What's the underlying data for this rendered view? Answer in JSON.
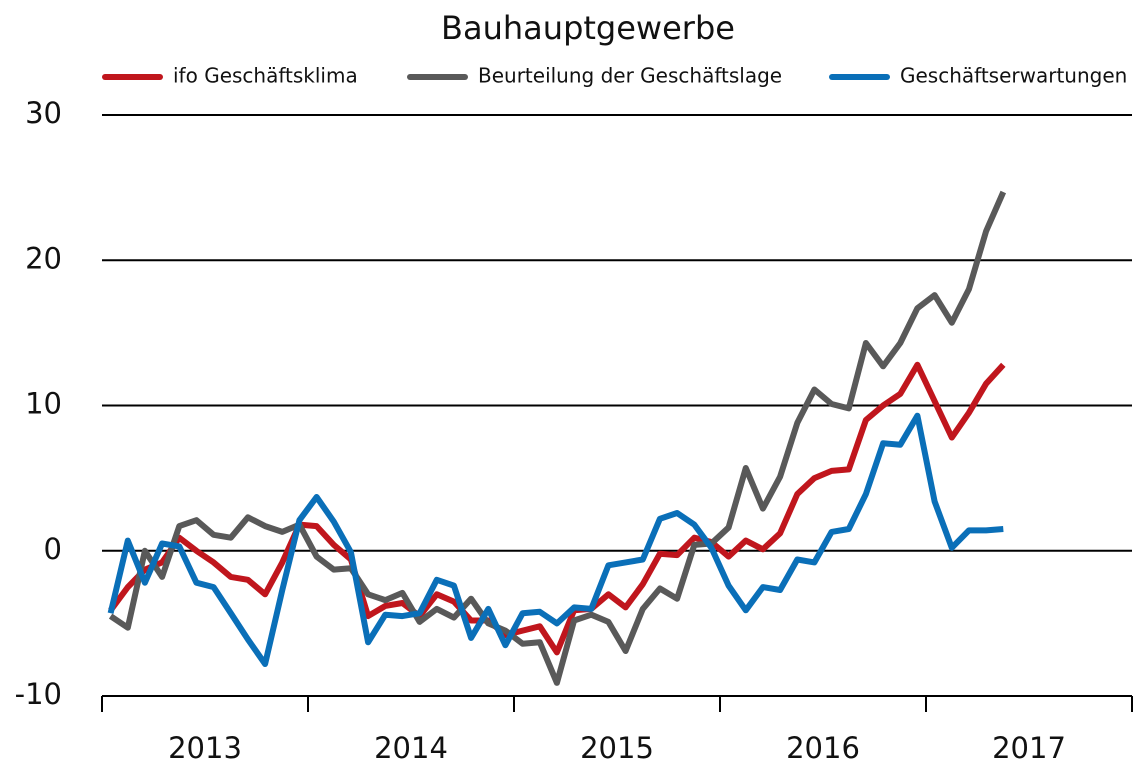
{
  "chart_data": {
    "type": "line",
    "title": "Bauhauptgewerbe",
    "categories": [
      null,
      null,
      null,
      null,
      null,
      null,
      null,
      null,
      null,
      null,
      null,
      null,
      null,
      null,
      null,
      null,
      null,
      null,
      null,
      null,
      null,
      null,
      null,
      null,
      null,
      null,
      null,
      null,
      null,
      null,
      null,
      null,
      null,
      null,
      null,
      null,
      null,
      null,
      null,
      null,
      null,
      null,
      null,
      null,
      null,
      null,
      null,
      null,
      null,
      null,
      null,
      null,
      null
    ],
    "years": [
      "2013",
      "2014",
      "2015",
      "2016",
      "2017"
    ],
    "ylim": [
      -10,
      30
    ],
    "yticks": [
      -10,
      0,
      10,
      20,
      30
    ],
    "grid": true,
    "series": [
      {
        "name": "ifo Geschäftsklima",
        "color": "#c0161d",
        "values": [
          -4.1,
          -2.5,
          -1.3,
          -0.8,
          0.9,
          0.0,
          -0.8,
          -1.8,
          -2.0,
          -3.0,
          -0.8,
          1.8,
          1.7,
          0.4,
          -0.6,
          -4.5,
          -3.8,
          -3.6,
          -4.5,
          -3.0,
          -3.5,
          -4.8,
          -4.8,
          -5.8,
          -5.5,
          -5.2,
          -7.0,
          -4.1,
          -4.0,
          -3.0,
          -3.9,
          -2.3,
          -0.2,
          -0.3,
          0.9,
          0.6,
          -0.4,
          0.7,
          0.1,
          1.2,
          3.9,
          5.0,
          5.5,
          5.6,
          9.0,
          10.0,
          10.8,
          12.8,
          10.3,
          7.8,
          9.5,
          11.5,
          12.8
        ]
      },
      {
        "name": "Beurteilung der Geschäftslage",
        "color": "#595959",
        "values": [
          -4.5,
          -5.3,
          0.0,
          -1.8,
          1.7,
          2.1,
          1.1,
          0.9,
          2.3,
          1.7,
          1.3,
          1.8,
          -0.4,
          -1.3,
          -1.2,
          -3.0,
          -3.4,
          -2.9,
          -4.9,
          -4.0,
          -4.6,
          -3.3,
          -5.0,
          -5.5,
          -6.4,
          -6.3,
          -9.1,
          -4.8,
          -4.4,
          -4.9,
          -6.9,
          -4.0,
          -2.6,
          -3.3,
          0.4,
          0.5,
          1.6,
          5.7,
          2.9,
          5.1,
          8.8,
          11.1,
          10.1,
          9.8,
          14.3,
          12.7,
          14.3,
          16.7,
          17.6,
          15.7,
          18.0,
          22.0,
          24.7
        ]
      },
      {
        "name": "Geschäftserwartungen",
        "color": "#0a6fb8",
        "values": [
          -4.3,
          0.7,
          -2.2,
          0.5,
          0.3,
          -2.2,
          -2.5,
          -4.3,
          -6.1,
          -7.8,
          -2.7,
          2.1,
          3.7,
          2.0,
          -0.1,
          -6.3,
          -4.4,
          -4.5,
          -4.3,
          -2.0,
          -2.4,
          -6.0,
          -4.0,
          -6.5,
          -4.3,
          -4.2,
          -5.0,
          -3.9,
          -4.0,
          -1.0,
          -0.8,
          -0.6,
          2.2,
          2.6,
          1.8,
          0.2,
          -2.4,
          -4.1,
          -2.5,
          -2.7,
          -0.6,
          -0.8,
          1.3,
          1.5,
          3.9,
          7.4,
          7.3,
          9.3,
          3.4,
          0.2,
          1.4,
          1.4,
          1.5
        ]
      }
    ]
  }
}
